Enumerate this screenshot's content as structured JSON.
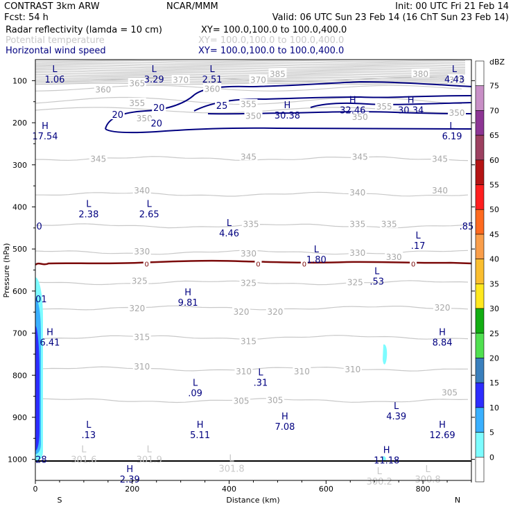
{
  "header": {
    "left1": "CONTRAST  3km ARW",
    "center1": "NCAR/MMM",
    "right1": "Init: 00 UTC Fri 21 Feb 14",
    "left2": "Fcst:    54 h",
    "right2": "Valid: 06 UTC Sun 23 Feb 14 (16 ChT Sun 23 Feb 14)",
    "fields": [
      {
        "name": "Radar reflectivity (lamda = 10 cm)",
        "xy": "XY= 100.0,100.0 to 100.0,400.0",
        "color": "#000000"
      },
      {
        "name": "Potential temperature",
        "xy": "XY= 100.0,100.0 to 100.0,400.0",
        "color": "#c8c8c8"
      },
      {
        "name": "Horizontal wind speed",
        "xy": "XY= 100.0,100.0 to 100.0,400.0",
        "color": "#000080"
      }
    ]
  },
  "chart_data": {
    "type": "cross-section contour",
    "xlabel": "Distance (km)",
    "ylabel": "Pressure (hPa)",
    "xlim": [
      0,
      900
    ],
    "ylim": [
      1050,
      50
    ],
    "x_ticks": [
      0,
      200,
      400,
      600,
      800
    ],
    "y_ticks": [
      100,
      200,
      300,
      400,
      500,
      600,
      700,
      800,
      900,
      1000
    ],
    "endpoint_labels": {
      "left": "S",
      "right": "N"
    },
    "theta_levels": [
      {
        "value": 345,
        "p": 285
      },
      {
        "value": 340,
        "p": 370
      },
      {
        "value": 335,
        "p": 445
      },
      {
        "value": 330,
        "p": 508
      },
      {
        "value": 325,
        "p": 580
      },
      {
        "value": 320,
        "p": 640
      },
      {
        "value": 315,
        "p": 710
      },
      {
        "value": 310,
        "p": 785
      },
      {
        "value": 305,
        "p": 860
      }
    ],
    "theta_labels": [
      {
        "text": "385",
        "x": 500,
        "p": 83
      },
      {
        "text": "380",
        "x": 795,
        "p": 83
      },
      {
        "text": "370",
        "x": 300,
        "p": 97
      },
      {
        "text": "370",
        "x": 460,
        "p": 97
      },
      {
        "text": "370",
        "x": 870,
        "p": 97
      },
      {
        "text": "365",
        "x": 210,
        "p": 105
      },
      {
        "text": "360",
        "x": 140,
        "p": 120
      },
      {
        "text": "360",
        "x": 365,
        "p": 118
      },
      {
        "text": "355",
        "x": 210,
        "p": 152
      },
      {
        "text": "355",
        "x": 440,
        "p": 155
      },
      {
        "text": "355",
        "x": 720,
        "p": 160
      },
      {
        "text": "350",
        "x": 225,
        "p": 188
      },
      {
        "text": "350",
        "x": 450,
        "p": 183
      },
      {
        "text": "350",
        "x": 670,
        "p": 185
      },
      {
        "text": "350",
        "x": 870,
        "p": 175
      },
      {
        "text": "345",
        "x": 130,
        "p": 285
      },
      {
        "text": "345",
        "x": 440,
        "p": 280
      },
      {
        "text": "345",
        "x": 670,
        "p": 280
      },
      {
        "text": "345",
        "x": 835,
        "p": 285
      },
      {
        "text": "340",
        "x": 220,
        "p": 360
      },
      {
        "text": "340",
        "x": 665,
        "p": 365
      },
      {
        "text": "340",
        "x": 835,
        "p": 360
      },
      {
        "text": "335",
        "x": 445,
        "p": 440
      },
      {
        "text": "335",
        "x": 665,
        "p": 440
      },
      {
        "text": "335",
        "x": 730,
        "p": 440
      },
      {
        "text": "330",
        "x": 220,
        "p": 505
      },
      {
        "text": "330",
        "x": 440,
        "p": 510
      },
      {
        "text": "330",
        "x": 665,
        "p": 508
      },
      {
        "text": "330",
        "x": 740,
        "p": 518
      },
      {
        "text": "325",
        "x": 215,
        "p": 575
      },
      {
        "text": "325",
        "x": 440,
        "p": 580
      },
      {
        "text": "325",
        "x": 660,
        "p": 578
      },
      {
        "text": "320",
        "x": 210,
        "p": 640
      },
      {
        "text": "320",
        "x": 425,
        "p": 648
      },
      {
        "text": "320",
        "x": 495,
        "p": 648
      },
      {
        "text": "320",
        "x": 840,
        "p": 638
      },
      {
        "text": "315",
        "x": 220,
        "p": 708
      },
      {
        "text": "315",
        "x": 440,
        "p": 718
      },
      {
        "text": "310",
        "x": 220,
        "p": 778
      },
      {
        "text": "310",
        "x": 430,
        "p": 790
      },
      {
        "text": "310",
        "x": 550,
        "p": 790
      },
      {
        "text": "310",
        "x": 655,
        "p": 785
      },
      {
        "text": "305",
        "x": 425,
        "p": 860
      },
      {
        "text": "305",
        "x": 495,
        "p": 858
      },
      {
        "text": "305",
        "x": 855,
        "p": 840
      }
    ],
    "wind_labels": [
      {
        "text": "20",
        "x": 170,
        "p": 180
      },
      {
        "text": "20",
        "x": 255,
        "p": 164
      },
      {
        "text": "20",
        "x": 250,
        "p": 201
      },
      {
        "text": "25",
        "x": 385,
        "p": 159
      }
    ],
    "extrema": [
      {
        "sym": "L",
        "val": "1.06",
        "x": 40,
        "p": 80,
        "color": "#000080"
      },
      {
        "sym": "L",
        "val": "3.29",
        "x": 245,
        "p": 80,
        "color": "#000080"
      },
      {
        "sym": "L",
        "val": "2.51",
        "x": 365,
        "p": 80,
        "color": "#000080"
      },
      {
        "sym": "L",
        "val": "4.43",
        "x": 865,
        "p": 80,
        "color": "#000080"
      },
      {
        "sym": "H",
        "val": "30.38",
        "x": 520,
        "p": 165,
        "color": "#000080"
      },
      {
        "sym": "H",
        "val": "32.46",
        "x": 655,
        "p": 153,
        "color": "#000080"
      },
      {
        "sym": "H",
        "val": "30.34",
        "x": 775,
        "p": 153,
        "color": "#000080"
      },
      {
        "sym": "H",
        "val": "17.54",
        "x": 20,
        "p": 215,
        "color": "#000080"
      },
      {
        "sym": "L",
        "val": "6.19",
        "x": 860,
        "p": 215,
        "color": "#000080"
      },
      {
        "sym": "L",
        "val": "2.38",
        "x": 110,
        "p": 400,
        "color": "#000080"
      },
      {
        "sym": "L",
        "val": "2.65",
        "x": 235,
        "p": 400,
        "color": "#000080"
      },
      {
        "sym": "L",
        "val": "4.46",
        "x": 400,
        "p": 445,
        "color": "#000080"
      },
      {
        "sym": "L",
        "val": ".17",
        "x": 790,
        "p": 475,
        "color": "#000080"
      },
      {
        "sym": "L",
        "val": "1.80",
        "x": 580,
        "p": 508,
        "color": "#000080"
      },
      {
        "sym": "L",
        "val": ".53",
        "x": 705,
        "p": 560,
        "color": "#000080"
      },
      {
        "sym": "H",
        "val": "9.81",
        "x": 315,
        "p": 610,
        "color": "#000080"
      },
      {
        "sym": "H",
        "val": "6.41",
        "x": 30,
        "p": 705,
        "color": "#000080"
      },
      {
        "sym": "H",
        "val": "8.84",
        "x": 840,
        "p": 705,
        "color": "#000080"
      },
      {
        "sym": "L",
        "val": ".31",
        "x": 465,
        "p": 800,
        "color": "#000080"
      },
      {
        "sym": "L",
        "val": ".09",
        "x": 330,
        "p": 825,
        "color": "#000080"
      },
      {
        "sym": "L",
        "val": "4.39",
        "x": 745,
        "p": 880,
        "color": "#000080"
      },
      {
        "sym": "H",
        "val": "7.08",
        "x": 515,
        "p": 905,
        "color": "#000080"
      },
      {
        "sym": "L",
        "val": ".13",
        "x": 110,
        "p": 925,
        "color": "#000080"
      },
      {
        "sym": "H",
        "val": "5.11",
        "x": 340,
        "p": 925,
        "color": "#000080"
      },
      {
        "sym": "H",
        "val": "12.69",
        "x": 840,
        "p": 925,
        "color": "#000080"
      },
      {
        "sym": "H",
        "val": "11.18",
        "x": 725,
        "p": 985,
        "color": "#000080"
      },
      {
        "sym": "H",
        "val": "2.39",
        "x": 195,
        "p": 1030,
        "color": "#000080"
      },
      {
        "sym": "L",
        "val": "301.6",
        "x": 100,
        "p": 983,
        "color": "#c8c8c8"
      },
      {
        "sym": "L",
        "val": "301.9",
        "x": 235,
        "p": 983,
        "color": "#c8c8c8"
      },
      {
        "sym": "L",
        "val": "301.8",
        "x": 405,
        "p": 1005,
        "color": "#c8c8c8"
      },
      {
        "sym": "L",
        "val": "300.2",
        "x": 710,
        "p": 1035,
        "color": "#c8c8c8"
      },
      {
        "sym": "L",
        "val": "300.8",
        "x": 810,
        "p": 1030,
        "color": "#c8c8c8"
      }
    ],
    "edge_values": [
      {
        "text": "0",
        "x": 8,
        "p": 445
      },
      {
        "text": "01",
        "x": 12,
        "p": 618
      },
      {
        "text": "28",
        "x": 12,
        "p": 1000
      },
      {
        "text": ".85",
        "x": 890,
        "p": 445
      }
    ],
    "freezing_level": {
      "value": "0",
      "p": 535,
      "label_x": [
        230,
        460,
        555,
        780
      ]
    },
    "colorbar": {
      "units": "dBZ",
      "levels": [
        75,
        70,
        65,
        60,
        55,
        50,
        45,
        40,
        35,
        30,
        25,
        20,
        15,
        10,
        5,
        0
      ],
      "colors": [
        "#ffffff",
        "#c88fc6",
        "#8d3594",
        "#9c4060",
        "#b41414",
        "#ff1f1f",
        "#ff6a1f",
        "#fa9e4a",
        "#fabe2f",
        "#ffe81f",
        "#12ad12",
        "#50e050",
        "#3a7fbd",
        "#2d2dff",
        "#3ab0ff",
        "#7dfcff",
        "#ffffff"
      ]
    }
  }
}
